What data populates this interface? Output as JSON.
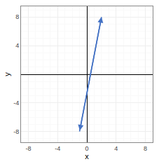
{
  "chart_data": {
    "type": "line",
    "x": [
      -1,
      2
    ],
    "values": [
      -8,
      8
    ],
    "color": "#4472c4",
    "xlabel": "x",
    "ylabel": "y",
    "xlim": [
      -9,
      9
    ],
    "ylim": [
      -9.5,
      9.5
    ],
    "xticks": [
      -8,
      -4,
      0,
      4,
      8
    ],
    "yticks": [
      -8,
      -4,
      4,
      8
    ],
    "grid": true
  }
}
